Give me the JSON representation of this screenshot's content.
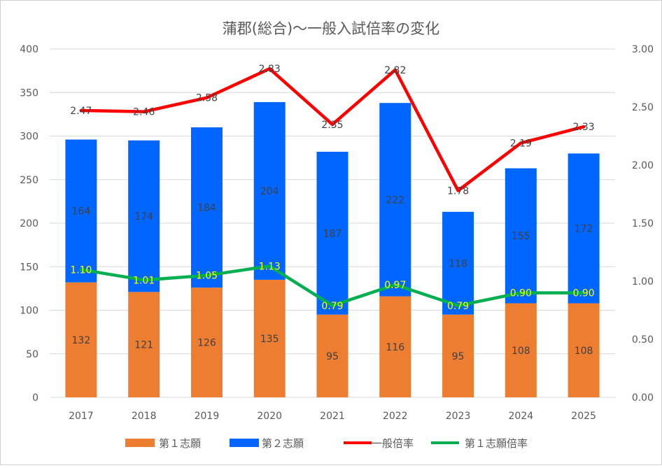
{
  "chart_data": {
    "type": "bar",
    "title": "蒲郡(総合)〜一般入試倍率の変化",
    "categories": [
      "2017",
      "2018",
      "2019",
      "2020",
      "2021",
      "2022",
      "2023",
      "2024",
      "2025"
    ],
    "y_left": {
      "range": [
        0,
        400
      ],
      "ticks": [
        "0",
        "50",
        "100",
        "150",
        "200",
        "250",
        "300",
        "350",
        "400"
      ]
    },
    "y_right": {
      "range": [
        0,
        3
      ],
      "ticks": [
        "0.00",
        "0.50",
        "1.00",
        "1.50",
        "2.00",
        "2.50",
        "3.00"
      ]
    },
    "grid": true,
    "legend_position": "bottom",
    "series": [
      {
        "name": "第１志願",
        "kind": "bar",
        "stack": "applicants",
        "axis": "left",
        "color": "#ED7D31",
        "label_color": "#404040",
        "values": [
          132,
          121,
          126,
          135,
          95,
          116,
          95,
          108,
          108
        ],
        "labels": [
          "132",
          "121",
          "126",
          "135",
          "95",
          "116",
          "95",
          "108",
          "108"
        ]
      },
      {
        "name": "第２志願",
        "kind": "bar",
        "stack": "applicants",
        "axis": "left",
        "color": "#0066FF",
        "label_color": "#404040",
        "values": [
          164,
          174,
          184,
          204,
          187,
          222,
          118,
          155,
          172
        ],
        "labels": [
          "164",
          "174",
          "184",
          "204",
          "187",
          "222",
          "118",
          "155",
          "172"
        ]
      },
      {
        "name": "一般倍率",
        "kind": "line",
        "axis": "right",
        "color": "#FF0000",
        "label_color": "#404040",
        "values": [
          2.47,
          2.46,
          2.58,
          2.83,
          2.35,
          2.82,
          1.78,
          2.19,
          2.33
        ],
        "labels": [
          "2.47",
          "2.46",
          "2.58",
          "2.83",
          "2.35",
          "2.82",
          "1.78",
          "2.19",
          "2.33"
        ]
      },
      {
        "name": "第１志願倍率",
        "kind": "line",
        "axis": "right",
        "color": "#00B050",
        "label_color": "#FFFF00",
        "values": [
          1.1,
          1.01,
          1.05,
          1.13,
          0.79,
          0.97,
          0.79,
          0.9,
          0.9
        ],
        "labels": [
          "1.10",
          "1.01",
          "1.05",
          "1.13",
          "0.79",
          "0.97",
          "0.79",
          "0.90",
          "0.90"
        ]
      }
    ]
  }
}
